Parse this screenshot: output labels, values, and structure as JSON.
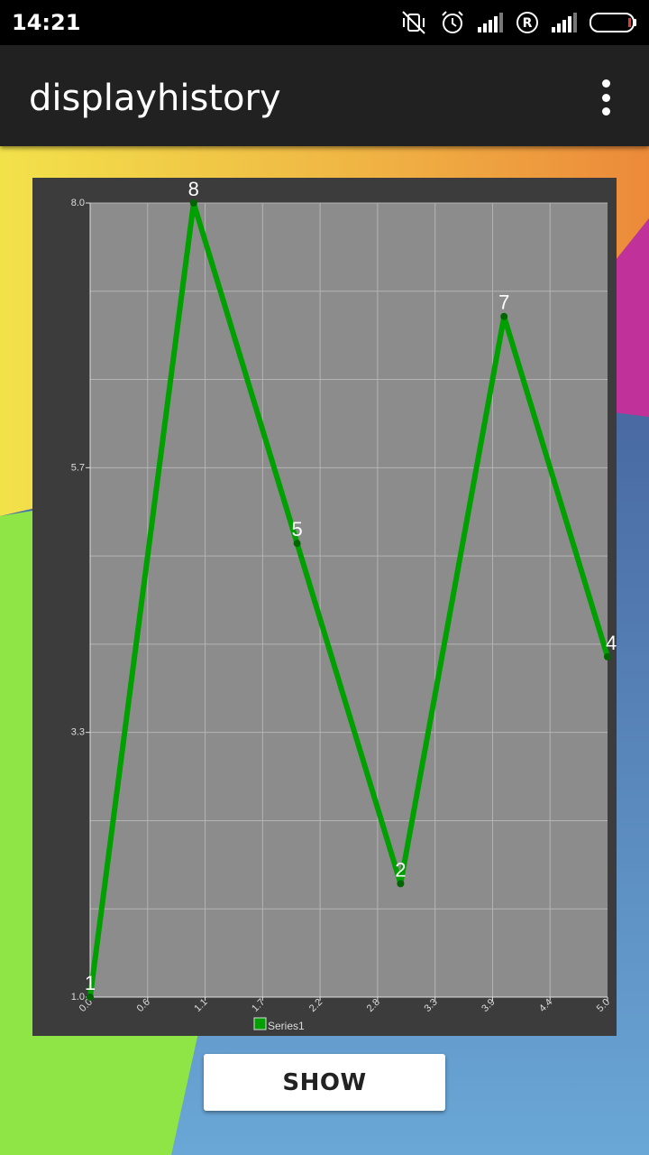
{
  "status_bar": {
    "time": "14:21",
    "icons": [
      "vibrate-off-icon",
      "alarm-icon",
      "signal-icon",
      "roaming-icon",
      "signal-icon",
      "battery-icon"
    ],
    "roaming_letter": "R"
  },
  "app_bar": {
    "title": "displayhistory",
    "overflow_icon": "more-vert-icon"
  },
  "colors": {
    "line": "#00a000",
    "point": "#006600",
    "plot_bg": "#8c8c8c",
    "frame_bg": "#3c3c3c",
    "grid": "#b4b4b4",
    "axis": "#e0e0e0"
  },
  "chart_data": {
    "type": "line",
    "xlim": [
      0,
      5
    ],
    "ylim": [
      1,
      8
    ],
    "x_ticks": [
      "0.0",
      "0.6",
      "1.1",
      "1.7",
      "2.2",
      "2.8",
      "3.3",
      "3.9",
      "4.4",
      "5.0"
    ],
    "y_ticks": [
      "1.0",
      "3.3",
      "5.7",
      "8.0"
    ],
    "series": [
      {
        "name": "Series1",
        "x": [
          0,
          1,
          2,
          3,
          4,
          5
        ],
        "values": [
          1,
          8,
          5,
          2,
          7,
          4
        ],
        "labels": [
          "1",
          "8",
          "5",
          "2",
          "7",
          "4"
        ]
      }
    ],
    "legend": "bottom-center",
    "grid": true
  },
  "actions": {
    "show_label": "SHOW"
  }
}
